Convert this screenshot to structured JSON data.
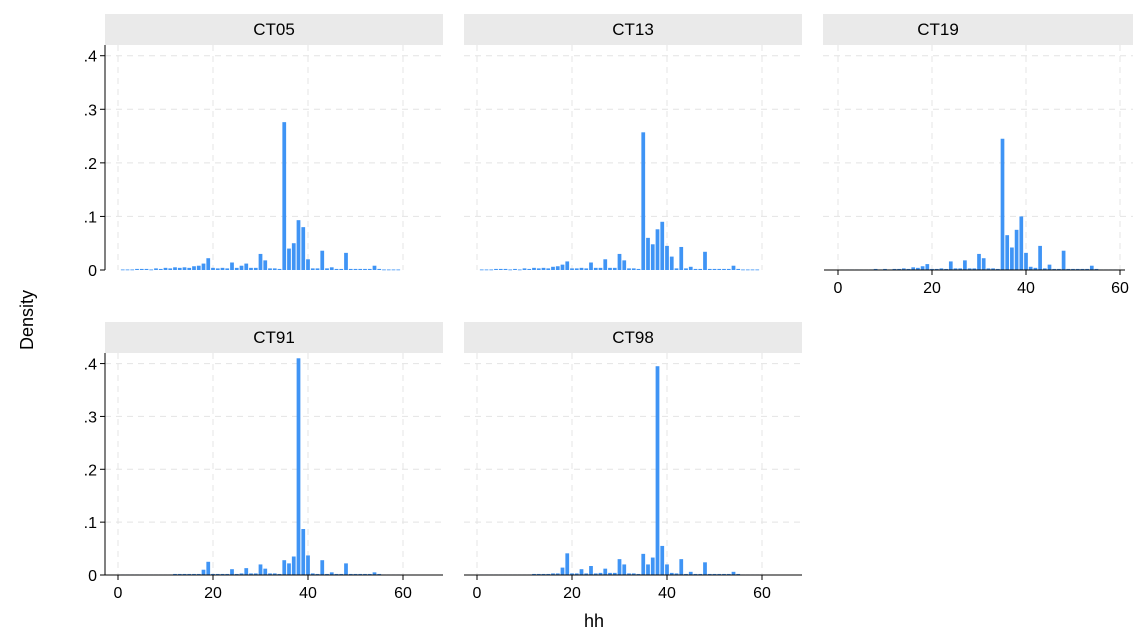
{
  "chart_data": {
    "type": "bar",
    "subtype": "histogram",
    "xlabel": "hh",
    "ylabel": "Density",
    "xlim": [
      0,
      60
    ],
    "ylim": [
      0,
      0.42
    ],
    "x_ticks": [
      0,
      20,
      40,
      60
    ],
    "y_ticks": [
      {
        "value": 0,
        "label": "0"
      },
      {
        "value": 0.1,
        "label": ".1"
      },
      {
        "value": 0.2,
        "label": ".2"
      },
      {
        "value": 0.3,
        "label": ".3"
      },
      {
        "value": 0.4,
        "label": ".4"
      }
    ],
    "bin_width": 1,
    "grid": true,
    "bar_color": "#3f94f5",
    "panels": [
      {
        "name": "CT05",
        "x": [
          1,
          2,
          3,
          4,
          5,
          6,
          7,
          8,
          9,
          10,
          11,
          12,
          13,
          14,
          15,
          16,
          17,
          18,
          19,
          20,
          21,
          22,
          23,
          24,
          25,
          26,
          27,
          28,
          29,
          30,
          31,
          32,
          33,
          34,
          35,
          36,
          37,
          38,
          39,
          40,
          41,
          42,
          43,
          44,
          45,
          46,
          47,
          48,
          49,
          50,
          51,
          52,
          53,
          54,
          55,
          56,
          57,
          58,
          59
        ],
        "values": [
          0.001,
          0.001,
          0.001,
          0.002,
          0.002,
          0.002,
          0.001,
          0.003,
          0.002,
          0.004,
          0.003,
          0.005,
          0.004,
          0.005,
          0.004,
          0.007,
          0.008,
          0.012,
          0.022,
          0.004,
          0.003,
          0.004,
          0.003,
          0.014,
          0.004,
          0.008,
          0.012,
          0.004,
          0.004,
          0.03,
          0.018,
          0.003,
          0.003,
          0.002,
          0.276,
          0.04,
          0.05,
          0.093,
          0.08,
          0.02,
          0.003,
          0.003,
          0.036,
          0.003,
          0.005,
          0.002,
          0.002,
          0.032,
          0.002,
          0.002,
          0.002,
          0.002,
          0.002,
          0.008,
          0.002,
          0.001,
          0.001,
          0.001,
          0.001
        ]
      },
      {
        "name": "CT13",
        "x": [
          1,
          2,
          3,
          4,
          5,
          6,
          7,
          8,
          9,
          10,
          11,
          12,
          13,
          14,
          15,
          16,
          17,
          18,
          19,
          20,
          21,
          22,
          23,
          24,
          25,
          26,
          27,
          28,
          29,
          30,
          31,
          32,
          33,
          34,
          35,
          36,
          37,
          38,
          39,
          40,
          41,
          42,
          43,
          44,
          45,
          46,
          47,
          48,
          49,
          50,
          51,
          52,
          53,
          54,
          55,
          56,
          57,
          58,
          59
        ],
        "values": [
          0.001,
          0.001,
          0.001,
          0.002,
          0.002,
          0.002,
          0.001,
          0.002,
          0.001,
          0.003,
          0.002,
          0.004,
          0.003,
          0.004,
          0.003,
          0.006,
          0.007,
          0.01,
          0.016,
          0.003,
          0.003,
          0.004,
          0.003,
          0.014,
          0.004,
          0.004,
          0.02,
          0.004,
          0.004,
          0.03,
          0.018,
          0.003,
          0.003,
          0.002,
          0.257,
          0.06,
          0.048,
          0.076,
          0.09,
          0.045,
          0.025,
          0.003,
          0.043,
          0.003,
          0.006,
          0.002,
          0.002,
          0.034,
          0.002,
          0.002,
          0.002,
          0.002,
          0.002,
          0.008,
          0.002,
          0.001,
          0.001,
          0.001,
          0.001
        ]
      },
      {
        "name": "CT19",
        "x": [
          1,
          2,
          3,
          4,
          5,
          6,
          7,
          8,
          9,
          10,
          11,
          12,
          13,
          14,
          15,
          16,
          17,
          18,
          19,
          20,
          21,
          22,
          23,
          24,
          25,
          26,
          27,
          28,
          29,
          30,
          31,
          32,
          33,
          34,
          35,
          36,
          37,
          38,
          39,
          40,
          41,
          42,
          43,
          44,
          45,
          46,
          47,
          48,
          49,
          50,
          51,
          52,
          53,
          54,
          55,
          56,
          57,
          58,
          59
        ],
        "values": [
          0.001,
          0.001,
          0.001,
          0.001,
          0.001,
          0.001,
          0.001,
          0.002,
          0.001,
          0.002,
          0.001,
          0.002,
          0.002,
          0.003,
          0.002,
          0.005,
          0.004,
          0.007,
          0.011,
          0.002,
          0.002,
          0.003,
          0.002,
          0.016,
          0.003,
          0.003,
          0.018,
          0.003,
          0.003,
          0.03,
          0.022,
          0.003,
          0.003,
          0.002,
          0.245,
          0.065,
          0.042,
          0.075,
          0.1,
          0.032,
          0.006,
          0.004,
          0.045,
          0.003,
          0.01,
          0.002,
          0.002,
          0.036,
          0.002,
          0.002,
          0.002,
          0.002,
          0.002,
          0.008,
          0.002,
          0.001,
          0.001,
          0.001,
          0.001
        ]
      },
      {
        "name": "CT91",
        "x": [
          1,
          2,
          3,
          4,
          5,
          6,
          7,
          8,
          9,
          10,
          11,
          12,
          13,
          14,
          15,
          16,
          17,
          18,
          19,
          20,
          21,
          22,
          23,
          24,
          25,
          26,
          27,
          28,
          29,
          30,
          31,
          32,
          33,
          34,
          35,
          36,
          37,
          38,
          39,
          40,
          41,
          42,
          43,
          44,
          45,
          46,
          47,
          48,
          49,
          50,
          51,
          52,
          53,
          54,
          55,
          56,
          57,
          58,
          59
        ],
        "values": [
          0.001,
          0.001,
          0.001,
          0.001,
          0.001,
          0.001,
          0.001,
          0.001,
          0.001,
          0.001,
          0.001,
          0.002,
          0.002,
          0.002,
          0.002,
          0.002,
          0.002,
          0.01,
          0.025,
          0.002,
          0.002,
          0.002,
          0.002,
          0.011,
          0.002,
          0.003,
          0.013,
          0.003,
          0.003,
          0.02,
          0.012,
          0.003,
          0.003,
          0.002,
          0.028,
          0.022,
          0.035,
          0.41,
          0.087,
          0.037,
          0.003,
          0.002,
          0.028,
          0.002,
          0.005,
          0.002,
          0.002,
          0.022,
          0.002,
          0.002,
          0.002,
          0.002,
          0.002,
          0.005,
          0.002,
          0.001,
          0.001,
          0.001,
          0.001
        ]
      },
      {
        "name": "CT98",
        "x": [
          1,
          2,
          3,
          4,
          5,
          6,
          7,
          8,
          9,
          10,
          11,
          12,
          13,
          14,
          15,
          16,
          17,
          18,
          19,
          20,
          21,
          22,
          23,
          24,
          25,
          26,
          27,
          28,
          29,
          30,
          31,
          32,
          33,
          34,
          35,
          36,
          37,
          38,
          39,
          40,
          41,
          42,
          43,
          44,
          45,
          46,
          47,
          48,
          49,
          50,
          51,
          52,
          53,
          54,
          55,
          56,
          57,
          58,
          59
        ],
        "values": [
          0.001,
          0.001,
          0.001,
          0.001,
          0.001,
          0.001,
          0.001,
          0.001,
          0.001,
          0.001,
          0.001,
          0.002,
          0.002,
          0.002,
          0.002,
          0.003,
          0.003,
          0.014,
          0.041,
          0.003,
          0.003,
          0.011,
          0.003,
          0.017,
          0.003,
          0.004,
          0.012,
          0.004,
          0.004,
          0.03,
          0.02,
          0.003,
          0.003,
          0.002,
          0.04,
          0.02,
          0.033,
          0.395,
          0.055,
          0.02,
          0.004,
          0.003,
          0.03,
          0.002,
          0.006,
          0.002,
          0.002,
          0.024,
          0.002,
          0.002,
          0.002,
          0.002,
          0.002,
          0.006,
          0.002,
          0.001,
          0.001,
          0.001,
          0.001
        ]
      }
    ]
  }
}
